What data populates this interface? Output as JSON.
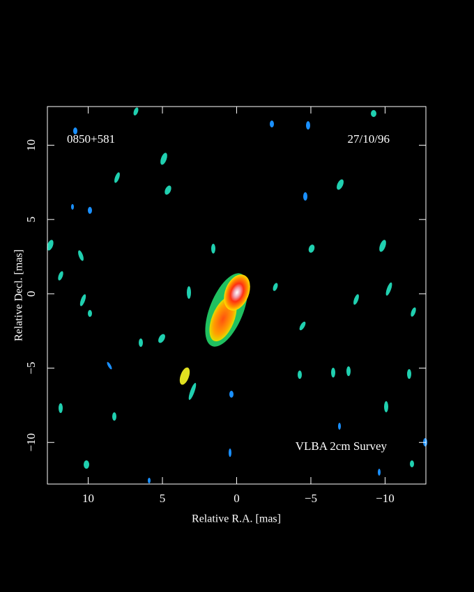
{
  "chart_data": {
    "type": "image",
    "source": "0850+581",
    "date": "27/10/96",
    "annotation": "VLBA 2cm Survey",
    "xlabel": "Relative R.A. [mas]",
    "ylabel": "Relative Decl. [mas]",
    "xlim": [
      12.75,
      -12.75
    ],
    "ylim": [
      -12.8,
      12.6
    ],
    "xticks": [
      10,
      5,
      0,
      {
        "value": -5,
        "label": "−5"
      },
      {
        "value": -10,
        "label": "−10"
      }
    ],
    "yticks": [
      {
        "value": -10,
        "label": "−10"
      },
      {
        "value": -5,
        "label": "−5"
      },
      0,
      5,
      10
    ],
    "background": "#000000",
    "frame_color": "#ffffff"
  }
}
